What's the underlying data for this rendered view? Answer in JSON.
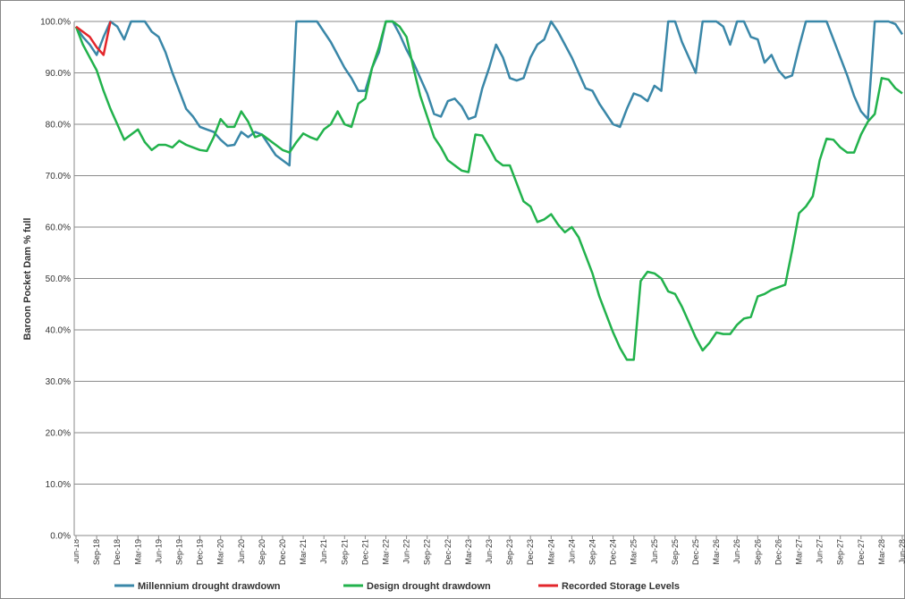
{
  "chart_data": {
    "type": "line",
    "y_label": "Baroon Pocket Dam  % full",
    "categories": [
      "Jun-18",
      null,
      null,
      "Sep-18",
      null,
      null,
      "Dec-18",
      null,
      null,
      "Mar-19",
      null,
      null,
      "Jun-19",
      null,
      null,
      "Sep-19",
      null,
      null,
      "Dec-19",
      null,
      null,
      "Mar-20",
      null,
      null,
      "Jun-20",
      null,
      null,
      "Sep-20",
      null,
      null,
      "Dec-20",
      null,
      null,
      "Mar-21",
      null,
      null,
      "Jun-21",
      null,
      null,
      "Sep-21",
      null,
      null,
      "Dec-21",
      null,
      null,
      "Mar-22",
      null,
      null,
      "Jun-22",
      null,
      null,
      "Sep-22",
      null,
      null,
      "Dec-22",
      null,
      null,
      "Mar-23",
      null,
      null,
      "Jun-23",
      null,
      null,
      "Sep-23",
      null,
      null,
      "Dec-23",
      null,
      null,
      "Mar-24",
      null,
      null,
      "Jun-24",
      null,
      null,
      "Sep-24",
      null,
      null,
      "Dec-24",
      null,
      null,
      "Mar-25",
      null,
      null,
      "Jun-25",
      null,
      null,
      "Sep-25",
      null,
      null,
      "Dec-25",
      null,
      null,
      "Mar-26",
      null,
      null,
      "Jun-26",
      null,
      null,
      "Sep-26",
      null,
      null,
      "Dec-26",
      null,
      null,
      "Mar-27",
      null,
      null,
      "Jun-27",
      null,
      null,
      "Sep-27",
      null,
      null,
      "Dec-27",
      null,
      null,
      "Mar-28",
      null,
      null,
      "Jun-28"
    ],
    "series": [
      {
        "name": "Millennium drought drawdown",
        "color": "#3a87a8",
        "values": [
          99,
          97,
          95.5,
          93.5,
          97,
          100,
          99,
          96.5,
          100,
          100,
          100,
          98,
          97,
          94,
          90,
          86.5,
          83,
          81.5,
          79.5,
          79,
          78.5,
          77,
          75.8,
          76,
          78.5,
          77.5,
          78.5,
          78,
          76,
          74,
          73,
          72,
          100,
          100,
          100,
          100,
          98,
          96,
          93.5,
          91,
          89,
          86.5,
          86.5,
          91,
          94,
          100,
          100,
          97.5,
          94.5,
          92,
          89,
          86,
          82,
          81.5,
          84.5,
          85,
          83.5,
          81,
          81.5,
          87,
          91,
          95.5,
          93,
          89,
          88.5,
          89,
          93,
          95.5,
          96.5,
          100,
          98,
          95.5,
          93,
          90,
          87,
          86.5,
          84,
          82,
          80,
          79.5,
          83,
          86,
          85.5,
          84.5,
          87.5,
          86.5,
          100,
          100,
          96,
          93,
          90,
          100,
          100,
          100,
          99,
          95.5,
          100,
          100,
          97,
          96.5,
          92,
          93.5,
          90.5,
          89,
          89.5,
          95,
          100,
          100,
          100,
          100,
          96.5,
          93,
          89.5,
          85.5,
          82.5,
          81,
          100,
          100,
          100,
          99.5,
          97.5
        ]
      },
      {
        "name": "Design drought drawdown",
        "color": "#22b24c",
        "values": [
          99,
          95.5,
          93,
          90.5,
          86.5,
          83,
          80,
          77,
          78,
          79,
          76.5,
          75,
          76,
          76,
          75.5,
          76.8,
          76,
          75.5,
          75,
          74.8,
          77.5,
          81,
          79.5,
          79.5,
          82.5,
          80.5,
          77.5,
          78,
          77,
          76,
          75,
          74.5,
          76.5,
          78.2,
          77.5,
          77,
          79,
          80,
          82.5,
          80,
          79.5,
          84,
          85,
          91,
          95,
          100,
          100,
          99,
          97,
          91,
          85.5,
          81.5,
          77.5,
          75.5,
          73,
          72,
          71,
          70.7,
          78,
          77.8,
          75.5,
          73,
          72,
          72,
          68.5,
          65,
          64,
          61,
          61.5,
          62.5,
          60.5,
          59,
          60,
          58,
          54.5,
          51,
          46.5,
          43,
          39.5,
          36.5,
          34.2,
          34.2,
          49.5,
          51.3,
          51,
          50,
          47.5,
          47,
          44.5,
          41.5,
          38.5,
          36,
          37.5,
          39.5,
          39.2,
          39.2,
          41,
          42.2,
          42.5,
          46.5,
          47,
          47.8,
          48.3,
          48.8,
          55.5,
          62.7,
          64,
          66,
          73,
          77.2,
          77,
          75.5,
          74.5,
          74.5,
          78,
          80.5,
          82,
          89,
          88.7,
          87,
          86
        ]
      },
      {
        "name": "Recorded Storage Levels",
        "color": "#e3262b",
        "values": [
          99,
          98,
          97,
          95,
          93.5,
          100,
          null,
          null,
          null,
          null,
          null,
          null,
          null,
          null,
          null,
          null,
          null,
          null,
          null,
          null,
          null,
          null,
          null,
          null,
          null,
          null,
          null,
          null,
          null,
          null,
          null,
          null,
          null,
          null,
          null,
          null,
          null,
          null,
          null,
          null,
          null,
          null,
          null,
          null,
          null,
          null,
          null,
          null,
          null,
          null,
          null,
          null,
          null,
          null,
          null,
          null,
          null,
          null,
          null,
          null,
          null,
          null,
          null,
          null,
          null,
          null,
          null,
          null,
          null,
          null,
          null,
          null,
          null,
          null,
          null,
          null,
          null,
          null,
          null,
          null,
          null,
          null,
          null,
          null,
          null,
          null,
          null,
          null,
          null,
          null,
          null,
          null,
          null,
          null,
          null,
          null,
          null,
          null,
          null,
          null,
          null,
          null,
          null,
          null,
          null,
          null,
          null,
          null,
          null,
          null,
          null,
          null,
          null,
          null,
          null,
          null,
          null,
          null,
          null,
          null,
          null
        ]
      }
    ],
    "ylim": [
      0,
      100
    ],
    "yticks": [
      {
        "value": 0,
        "label": "0.0%"
      },
      {
        "value": 10,
        "label": "10.0%"
      },
      {
        "value": 20,
        "label": "20.0%"
      },
      {
        "value": 30,
        "label": "30.0%"
      },
      {
        "value": 40,
        "label": "40.0%"
      },
      {
        "value": 50,
        "label": "50.0%"
      },
      {
        "value": 60,
        "label": "60.0%"
      },
      {
        "value": 70,
        "label": "70.0%"
      },
      {
        "value": 80,
        "label": "80.0%"
      },
      {
        "value": 90,
        "label": "90.0%"
      },
      {
        "value": 100,
        "label": "100.0%"
      }
    ],
    "grid": true,
    "legend": "bottom"
  }
}
